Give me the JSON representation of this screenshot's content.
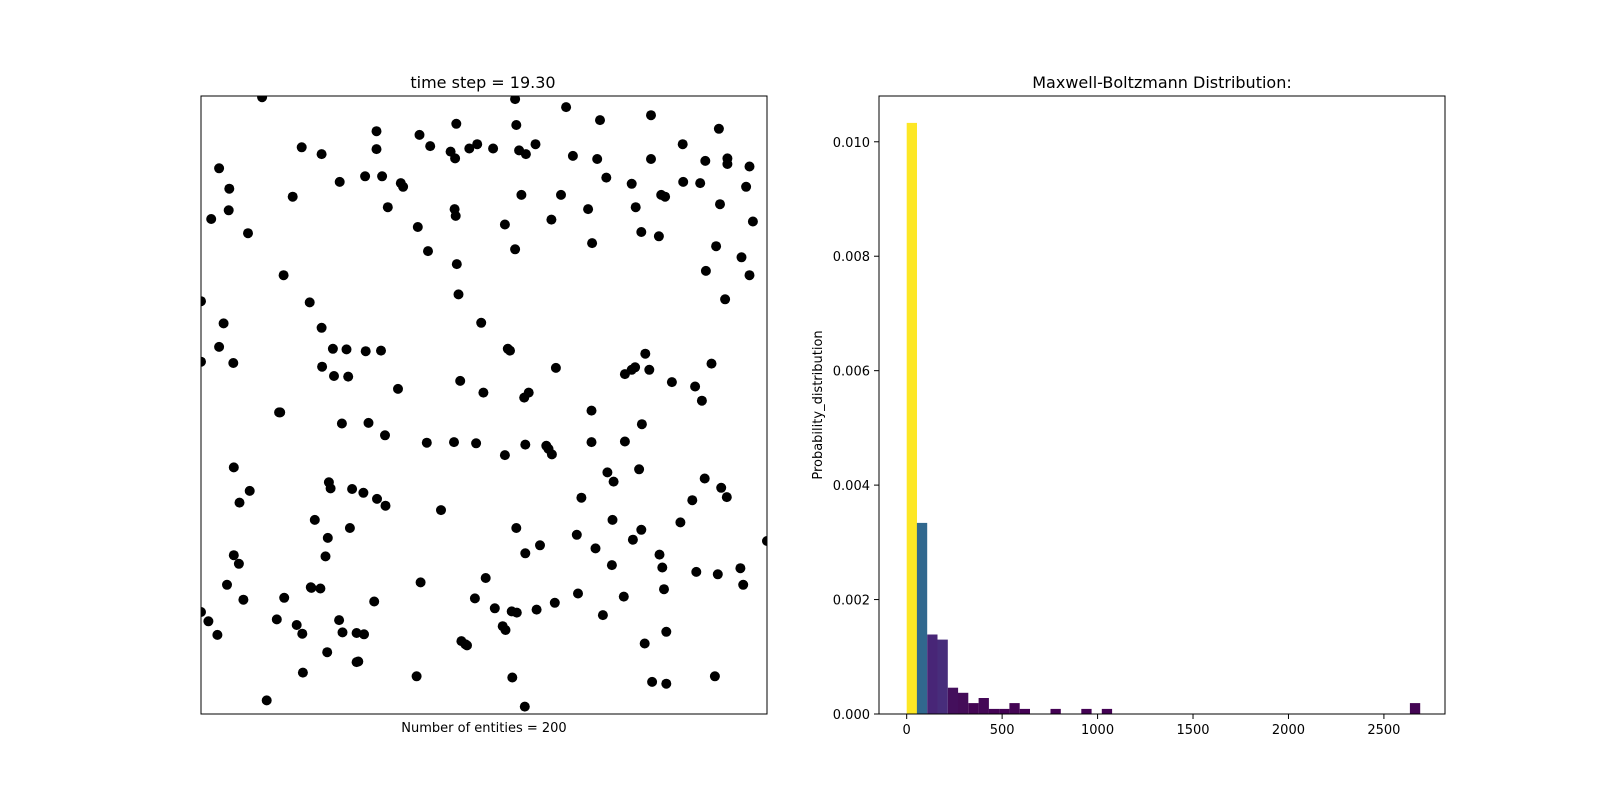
{
  "chart_data": [
    {
      "type": "scatter",
      "title": "time step = 19.30",
      "xlabel": "Number of entities = 200",
      "ylabel": "",
      "xlim": [
        0,
        1
      ],
      "ylim": [
        0,
        1
      ],
      "grid": false,
      "axis_ticks": false,
      "point_color": "#000000",
      "points": [
        [
          0.108,
          0.998
        ],
        [
          0.555,
          0.995
        ],
        [
          0.645,
          0.982
        ],
        [
          0.795,
          0.969
        ],
        [
          0.557,
          0.953
        ],
        [
          0.915,
          0.947
        ],
        [
          0.705,
          0.961
        ],
        [
          0.31,
          0.943
        ],
        [
          0.451,
          0.955
        ],
        [
          0.386,
          0.937
        ],
        [
          0.488,
          0.922
        ],
        [
          0.178,
          0.917
        ],
        [
          0.213,
          0.906
        ],
        [
          0.31,
          0.914
        ],
        [
          0.405,
          0.919
        ],
        [
          0.441,
          0.91
        ],
        [
          0.449,
          0.899
        ],
        [
          0.591,
          0.922
        ],
        [
          0.574,
          0.906
        ],
        [
          0.29,
          0.87
        ],
        [
          0.33,
          0.82
        ],
        [
          0.474,
          0.915
        ],
        [
          0.32,
          0.87
        ],
        [
          0.353,
          0.859
        ],
        [
          0.516,
          0.915
        ],
        [
          0.562,
          0.912
        ],
        [
          0.657,
          0.903
        ],
        [
          0.7,
          0.898
        ],
        [
          0.795,
          0.898
        ],
        [
          0.851,
          0.922
        ],
        [
          0.891,
          0.895
        ],
        [
          0.93,
          0.899
        ],
        [
          0.032,
          0.883
        ],
        [
          0.05,
          0.85
        ],
        [
          0.049,
          0.815
        ],
        [
          0.018,
          0.801
        ],
        [
          0.083,
          0.778
        ],
        [
          0.162,
          0.837
        ],
        [
          0.245,
          0.861
        ],
        [
          0.357,
          0.853
        ],
        [
          0.383,
          0.788
        ],
        [
          0.401,
          0.749
        ],
        [
          0.448,
          0.817
        ],
        [
          0.45,
          0.806
        ],
        [
          0.537,
          0.792
        ],
        [
          0.566,
          0.84
        ],
        [
          0.619,
          0.8
        ],
        [
          0.636,
          0.84
        ],
        [
          0.684,
          0.817
        ],
        [
          0.691,
          0.762
        ],
        [
          0.716,
          0.868
        ],
        [
          0.761,
          0.858
        ],
        [
          0.768,
          0.82
        ],
        [
          0.778,
          0.78
        ],
        [
          0.809,
          0.773
        ],
        [
          0.813,
          0.84
        ],
        [
          0.82,
          0.837
        ],
        [
          0.852,
          0.861
        ],
        [
          0.882,
          0.859
        ],
        [
          0.917,
          0.825
        ],
        [
          0.93,
          0.89
        ],
        [
          0.969,
          0.886
        ],
        [
          0.963,
          0.853
        ],
        [
          0.975,
          0.797
        ],
        [
          0.955,
          0.739
        ],
        [
          0.892,
          0.717
        ],
        [
          0.91,
          0.757
        ],
        [
          0.926,
          0.671
        ],
        [
          0.969,
          0.71
        ],
        [
          0.0,
          0.668
        ],
        [
          0.04,
          0.632
        ],
        [
          0.032,
          0.594
        ],
        [
          0.057,
          0.568
        ],
        [
          0.146,
          0.71
        ],
        [
          0.192,
          0.666
        ],
        [
          0.213,
          0.625
        ],
        [
          0.214,
          0.562
        ],
        [
          0.235,
          0.547
        ],
        [
          0.257,
          0.59
        ],
        [
          0.26,
          0.546
        ],
        [
          0.233,
          0.591
        ],
        [
          0.291,
          0.587
        ],
        [
          0.318,
          0.588
        ],
        [
          0.348,
          0.526
        ],
        [
          0.452,
          0.728
        ],
        [
          0.455,
          0.679
        ],
        [
          0.458,
          0.539
        ],
        [
          0.495,
          0.633
        ],
        [
          0.542,
          0.591
        ],
        [
          0.546,
          0.588
        ],
        [
          0.579,
          0.52
        ],
        [
          0.627,
          0.56
        ],
        [
          0.555,
          0.752
        ],
        [
          0.749,
          0.55
        ],
        [
          0.767,
          0.561
        ],
        [
          0.792,
          0.557
        ],
        [
          0.785,
          0.583
        ],
        [
          0.761,
          0.557
        ],
        [
          0.873,
          0.53
        ],
        [
          0.832,
          0.537
        ],
        [
          0.902,
          0.567
        ],
        [
          0.0,
          0.57
        ],
        [
          0.138,
          0.488
        ],
        [
          0.14,
          0.488
        ],
        [
          0.296,
          0.471
        ],
        [
          0.325,
          0.451
        ],
        [
          0.249,
          0.47
        ],
        [
          0.499,
          0.52
        ],
        [
          0.571,
          0.512
        ],
        [
          0.447,
          0.44
        ],
        [
          0.486,
          0.438
        ],
        [
          0.61,
          0.434
        ],
        [
          0.69,
          0.491
        ],
        [
          0.779,
          0.469
        ],
        [
          0.749,
          0.441
        ],
        [
          0.774,
          0.396
        ],
        [
          0.885,
          0.507
        ],
        [
          0.058,
          0.399
        ],
        [
          0.068,
          0.342
        ],
        [
          0.086,
          0.361
        ],
        [
          0.201,
          0.314
        ],
        [
          0.226,
          0.375
        ],
        [
          0.229,
          0.365
        ],
        [
          0.263,
          0.301
        ],
        [
          0.267,
          0.364
        ],
        [
          0.287,
          0.358
        ],
        [
          0.311,
          0.348
        ],
        [
          0.326,
          0.337
        ],
        [
          0.424,
          0.33
        ],
        [
          0.399,
          0.439
        ],
        [
          0.537,
          0.419
        ],
        [
          0.614,
          0.429
        ],
        [
          0.62,
          0.42
        ],
        [
          0.573,
          0.436
        ],
        [
          0.672,
          0.35
        ],
        [
          0.69,
          0.44
        ],
        [
          0.718,
          0.391
        ],
        [
          0.729,
          0.376
        ],
        [
          0.727,
          0.314
        ],
        [
          0.778,
          0.298
        ],
        [
          0.847,
          0.31
        ],
        [
          0.868,
          0.346
        ],
        [
          0.89,
          0.381
        ],
        [
          0.919,
          0.366
        ],
        [
          0.929,
          0.351
        ],
        [
          0.557,
          0.301
        ],
        [
          0.599,
          0.273
        ],
        [
          0.664,
          0.29
        ],
        [
          0.697,
          0.268
        ],
        [
          0.726,
          0.241
        ],
        [
          0.763,
          0.282
        ],
        [
          0.81,
          0.258
        ],
        [
          0.815,
          0.237
        ],
        [
          0.875,
          0.23
        ],
        [
          0.913,
          0.226
        ],
        [
          0.953,
          0.236
        ],
        [
          0.958,
          0.209
        ],
        [
          1.0,
          0.28
        ],
        [
          0.058,
          0.257
        ],
        [
          0.067,
          0.243
        ],
        [
          0.046,
          0.209
        ],
        [
          0.075,
          0.185
        ],
        [
          0.147,
          0.188
        ],
        [
          0.195,
          0.204
        ],
        [
          0.224,
          0.285
        ],
        [
          0.22,
          0.255
        ],
        [
          0.211,
          0.203
        ],
        [
          0.194,
          0.205
        ],
        [
          0.244,
          0.152
        ],
        [
          0.169,
          0.144
        ],
        [
          0.134,
          0.153
        ],
        [
          0.179,
          0.13
        ],
        [
          0.25,
          0.132
        ],
        [
          0.288,
          0.129
        ],
        [
          0.306,
          0.182
        ],
        [
          0.388,
          0.213
        ],
        [
          0.484,
          0.187
        ],
        [
          0.503,
          0.22
        ],
        [
          0.519,
          0.171
        ],
        [
          0.573,
          0.26
        ],
        [
          0.666,
          0.195
        ],
        [
          0.625,
          0.18
        ],
        [
          0.593,
          0.169
        ],
        [
          0.71,
          0.16
        ],
        [
          0.747,
          0.19
        ],
        [
          0.818,
          0.202
        ],
        [
          0.784,
          0.114
        ],
        [
          0.822,
          0.133
        ],
        [
          0.0,
          0.165
        ],
        [
          0.013,
          0.15
        ],
        [
          0.029,
          0.128
        ],
        [
          0.18,
          0.067
        ],
        [
          0.223,
          0.1
        ],
        [
          0.278,
          0.085
        ],
        [
          0.275,
          0.084
        ],
        [
          0.116,
          0.022
        ],
        [
          0.275,
          0.131
        ],
        [
          0.381,
          0.061
        ],
        [
          0.46,
          0.118
        ],
        [
          0.467,
          0.113
        ],
        [
          0.47,
          0.111
        ],
        [
          0.533,
          0.142
        ],
        [
          0.538,
          0.136
        ],
        [
          0.549,
          0.166
        ],
        [
          0.558,
          0.164
        ],
        [
          0.55,
          0.059
        ],
        [
          0.572,
          0.012
        ],
        [
          0.797,
          0.052
        ],
        [
          0.822,
          0.049
        ],
        [
          0.908,
          0.061
        ]
      ]
    },
    {
      "type": "bar",
      "title": "Maxwell-Boltzmann Distribution:",
      "xlabel": "",
      "ylabel": "Probability_distribution",
      "xlim": [
        -145,
        2820
      ],
      "ylim": [
        0,
        0.0108
      ],
      "xticks": [
        0,
        500,
        1000,
        1500,
        2000,
        2500
      ],
      "yticks": [
        0.0,
        0.002,
        0.004,
        0.006,
        0.008,
        0.01
      ],
      "ytick_labels": [
        "0.000",
        "0.002",
        "0.004",
        "0.006",
        "0.008",
        "0.010"
      ],
      "xtick_labels": [
        "0",
        "500",
        "1000",
        "1500",
        "2000",
        "2500"
      ],
      "bin_width": 53.8,
      "bins": [
        {
          "x": 0,
          "value": 0.01033,
          "color": "#fde725"
        },
        {
          "x": 53.8,
          "value": 0.00334,
          "color": "#31688e"
        },
        {
          "x": 107.6,
          "value": 0.00139,
          "color": "#482677"
        },
        {
          "x": 161.4,
          "value": 0.0013,
          "color": "#472d7b"
        },
        {
          "x": 215.2,
          "value": 0.00046,
          "color": "#440f5c"
        },
        {
          "x": 269.0,
          "value": 0.00037,
          "color": "#440c58"
        },
        {
          "x": 322.8,
          "value": 0.00019,
          "color": "#440554"
        },
        {
          "x": 376.6,
          "value": 0.00028,
          "color": "#440856"
        },
        {
          "x": 430.4,
          "value": 9e-05,
          "color": "#440254"
        },
        {
          "x": 484.2,
          "value": 9e-05,
          "color": "#440254"
        },
        {
          "x": 538.0,
          "value": 0.00019,
          "color": "#440554"
        },
        {
          "x": 591.8,
          "value": 9e-05,
          "color": "#440254"
        },
        {
          "x": 753.2,
          "value": 9e-05,
          "color": "#440254"
        },
        {
          "x": 914.6,
          "value": 9e-05,
          "color": "#440254"
        },
        {
          "x": 1022.2,
          "value": 9e-05,
          "color": "#440254"
        },
        {
          "x": 2635.9,
          "value": 0.00019,
          "color": "#440554"
        }
      ]
    }
  ]
}
